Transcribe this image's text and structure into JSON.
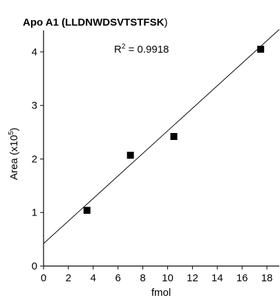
{
  "chart_data": {
    "type": "scatter",
    "title_prefix": "Apo A1 (",
    "title_peptide": "LLDNWDSVTSTFSK",
    "title_suffix": ")",
    "annotation": {
      "prefix": "R",
      "sup": "2",
      "suffix": " = 0.9918"
    },
    "xlabel": "fmol",
    "ylabel": {
      "prefix": "Area (x10",
      "sup": "5",
      "suffix": ")"
    },
    "xlim": [
      0,
      19
    ],
    "ylim": [
      0,
      4.4
    ],
    "x_ticks": [
      0,
      2,
      4,
      6,
      8,
      10,
      12,
      14,
      16,
      18
    ],
    "y_ticks": [
      0,
      1,
      2,
      3,
      4
    ],
    "grid": false,
    "series": [
      {
        "x": [
          3.5,
          7.0,
          10.5,
          17.5
        ],
        "y": [
          1.04,
          2.07,
          2.42,
          4.05
        ],
        "marker": "square",
        "color": "#000000"
      }
    ],
    "fit_line": {
      "x": [
        0,
        19
      ],
      "y": [
        0.42,
        4.42
      ],
      "color": "#000000"
    }
  }
}
